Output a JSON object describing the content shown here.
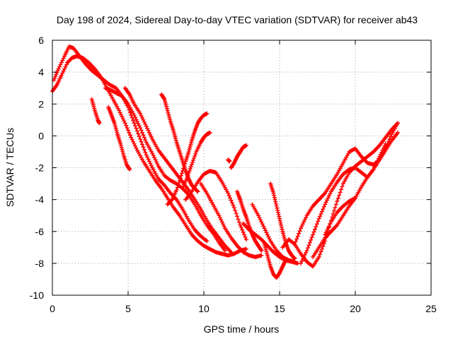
{
  "chart_data": {
    "type": "scatter",
    "title": "Day 198 of 2024, Sidereal Day-to-day VTEC variation (SDTVAR) for receiver ab43",
    "xlabel": "GPS time / hours",
    "ylabel": "SDTVAR / TECUs",
    "xlim": [
      0,
      25
    ],
    "ylim": [
      -10,
      6
    ],
    "xticks": [
      0,
      5,
      10,
      15,
      20,
      25
    ],
    "yticks": [
      -10,
      -8,
      -6,
      -4,
      -2,
      0,
      2,
      4,
      6
    ],
    "grid": true,
    "legend": "none",
    "marker": "+",
    "color": "#ff0000",
    "series": [
      {
        "x": [
          0.0,
          0.3,
          0.6,
          1.0,
          1.3,
          1.6,
          2.0,
          2.4,
          2.8,
          3.2,
          3.6,
          4.0,
          4.4,
          4.8,
          5.2,
          5.6,
          6.0,
          6.4,
          6.8,
          7.2,
          7.6,
          8.0,
          8.4,
          8.8,
          9.2,
          9.6,
          10.0,
          10.4,
          10.8,
          11.2,
          11.6,
          12.0,
          12.4,
          12.8
        ],
        "y": [
          2.8,
          3.2,
          3.8,
          4.6,
          4.9,
          5.0,
          4.9,
          4.6,
          4.2,
          3.7,
          3.0,
          2.3,
          1.6,
          0.8,
          -0.1,
          -0.9,
          -1.6,
          -2.2,
          -2.8,
          -3.3,
          -3.9,
          -4.5,
          -5.0,
          -5.6,
          -6.2,
          -6.6,
          -6.9,
          -7.1,
          -7.3,
          -7.4,
          -7.5,
          -7.4,
          -7.2,
          -7.1
        ]
      },
      {
        "x": [
          0.1,
          0.4,
          0.8,
          1.1,
          1.4,
          1.8,
          2.2,
          2.6,
          3.0,
          3.4,
          3.8,
          4.2,
          4.6,
          5.0,
          5.4,
          5.8,
          6.2,
          6.6,
          7.0,
          7.4,
          7.8,
          8.2,
          8.6,
          9.0,
          9.4,
          9.8,
          10.2
        ],
        "y": [
          3.5,
          4.2,
          5.0,
          5.6,
          5.5,
          5.0,
          4.5,
          4.1,
          3.8,
          3.5,
          3.2,
          3.0,
          2.5,
          1.8,
          0.8,
          -0.2,
          -1.2,
          -2.0,
          -2.7,
          -3.1,
          -3.6,
          -4.0,
          -4.6,
          -5.3,
          -5.9,
          -6.3,
          -6.6
        ]
      },
      {
        "x": [
          3.5,
          3.8,
          4.2,
          4.6,
          5.0,
          5.4,
          5.8,
          6.2,
          6.6,
          7.0,
          7.4,
          7.8,
          8.2,
          8.6,
          9.0,
          9.4,
          9.8,
          10.2,
          10.6,
          11.0,
          11.4
        ],
        "y": [
          3.0,
          2.9,
          2.7,
          2.5,
          2.0,
          1.3,
          0.5,
          -0.4,
          -1.1,
          -1.9,
          -2.5,
          -2.8,
          -3.0,
          -3.3,
          -3.7,
          -4.3,
          -5.0,
          -5.6,
          -6.1,
          -6.7,
          -7.2
        ]
      },
      {
        "x": [
          4.8,
          5.1,
          5.4,
          5.8,
          6.2,
          6.6,
          7.0,
          7.4,
          7.8,
          8.2,
          8.6,
          9.0,
          9.4,
          9.8,
          10.2,
          10.6,
          11.0,
          11.4,
          11.8
        ],
        "y": [
          3.0,
          2.6,
          2.0,
          1.4,
          0.6,
          -0.2,
          -0.9,
          -1.4,
          -1.9,
          -2.4,
          -2.9,
          -3.4,
          -4.0,
          -4.6,
          -5.3,
          -5.9,
          -6.4,
          -6.9,
          -7.3
        ]
      },
      {
        "x": [
          2.6,
          2.8,
          3.0,
          3.1
        ],
        "y": [
          2.3,
          1.6,
          1.0,
          0.8
        ]
      },
      {
        "x": [
          3.7,
          3.9,
          4.1,
          4.3,
          4.5,
          4.7,
          4.9,
          5.1
        ],
        "y": [
          1.8,
          1.3,
          0.8,
          0.1,
          -0.5,
          -1.2,
          -1.8,
          -2.1
        ]
      },
      {
        "x": [
          7.2,
          7.4,
          7.6,
          7.8,
          8.0,
          8.2,
          8.4,
          8.6,
          8.8,
          9.0,
          9.2,
          9.4,
          9.6
        ],
        "y": [
          2.6,
          2.3,
          1.6,
          0.9,
          0.3,
          -0.4,
          -1.0,
          -1.6,
          -2.2,
          -2.7,
          -3.1,
          -3.3,
          -3.5
        ]
      },
      {
        "x": [
          7.6,
          7.9,
          8.2,
          8.5,
          8.8,
          9.0,
          9.2,
          9.4,
          9.6,
          9.8,
          10.0,
          10.2
        ],
        "y": [
          -4.3,
          -4.0,
          -3.4,
          -2.5,
          -1.6,
          -1.0,
          -0.3,
          0.3,
          0.8,
          1.1,
          1.3,
          1.4
        ]
      },
      {
        "x": [
          8.6,
          8.9,
          9.2,
          9.5,
          9.8,
          10.0,
          10.2,
          10.4
        ],
        "y": [
          -3.3,
          -2.6,
          -1.8,
          -1.0,
          -0.4,
          -0.1,
          0.1,
          0.2
        ]
      },
      {
        "x": [
          8.8,
          9.2,
          9.6,
          10.0,
          10.4,
          10.8,
          11.2,
          11.6,
          12.0,
          12.4,
          12.8
        ],
        "y": [
          -4.0,
          -3.5,
          -2.9,
          -2.4,
          -2.2,
          -2.3,
          -2.9,
          -3.6,
          -4.5,
          -5.6,
          -6.5
        ]
      },
      {
        "x": [
          9.8,
          10.2,
          10.6,
          11.0,
          11.4,
          11.8,
          12.2,
          12.6,
          13.0,
          13.4,
          13.8
        ],
        "y": [
          -3.0,
          -3.6,
          -4.3,
          -5.0,
          -5.8,
          -6.4,
          -6.9,
          -7.3,
          -7.5,
          -7.6,
          -7.5
        ]
      },
      {
        "x": [
          11.6,
          11.7
        ],
        "y": [
          -1.5,
          -1.6
        ]
      },
      {
        "x": [
          11.8,
          12.0,
          12.2,
          12.4,
          12.6,
          12.8
        ],
        "y": [
          -2.0,
          -1.7,
          -1.3,
          -1.0,
          -0.7,
          -0.6
        ]
      },
      {
        "x": [
          12.2,
          12.4,
          12.6,
          12.8,
          13.0,
          13.2,
          13.4,
          13.6,
          13.8
        ],
        "y": [
          -3.5,
          -4.0,
          -4.6,
          -5.1,
          -5.7,
          -6.2,
          -6.6,
          -6.9,
          -7.2
        ]
      },
      {
        "x": [
          12.6,
          13.0,
          13.4,
          13.8,
          14.2,
          14.6,
          15.0,
          15.4,
          15.8,
          16.2
        ],
        "y": [
          -5.5,
          -5.9,
          -6.2,
          -6.5,
          -6.9,
          -7.3,
          -7.6,
          -7.8,
          -7.9,
          -8.0
        ]
      },
      {
        "x": [
          13.2,
          13.6,
          14.0,
          14.4,
          14.8,
          15.2,
          15.6,
          16.0
        ],
        "y": [
          -4.3,
          -5.0,
          -5.8,
          -6.6,
          -7.2,
          -7.6,
          -7.8,
          -7.9
        ]
      },
      {
        "x": [
          14.0,
          14.2,
          14.4,
          14.6,
          14.8,
          15.0,
          15.2,
          15.4
        ],
        "y": [
          -6.8,
          -7.5,
          -8.2,
          -8.7,
          -8.9,
          -8.6,
          -8.2,
          -7.8
        ]
      },
      {
        "x": [
          14.4,
          14.6,
          14.8,
          15.0,
          15.2,
          15.4,
          15.6,
          15.8,
          16.0
        ],
        "y": [
          -3.0,
          -3.6,
          -4.4,
          -5.2,
          -6.0,
          -6.7,
          -7.2,
          -7.5,
          -7.7
        ]
      },
      {
        "x": [
          15.2,
          15.6,
          16.0,
          16.4,
          16.8,
          17.2,
          17.6,
          18.0,
          18.4,
          18.8,
          19.2,
          19.6,
          20.0,
          20.4,
          20.8,
          21.2,
          21.6,
          22.0,
          22.4,
          22.8
        ],
        "y": [
          -7.0,
          -6.5,
          -6.8,
          -7.4,
          -7.9,
          -8.2,
          -7.6,
          -6.6,
          -5.3,
          -4.1,
          -3.0,
          -2.3,
          -1.9,
          -1.6,
          -1.3,
          -1.0,
          -0.6,
          -0.1,
          0.4,
          0.8
        ]
      },
      {
        "x": [
          16.0,
          16.4,
          16.8,
          17.2,
          17.6,
          18.0,
          18.4,
          18.8,
          19.2,
          19.6,
          20.0,
          20.4,
          20.8,
          21.2,
          21.6,
          22.0,
          22.4,
          22.8
        ],
        "y": [
          -6.8,
          -5.8,
          -5.0,
          -4.4,
          -4.0,
          -3.6,
          -3.0,
          -2.4,
          -1.7,
          -1.0,
          -0.8,
          -1.3,
          -1.7,
          -1.8,
          -1.5,
          -0.8,
          0.1,
          0.8
        ]
      },
      {
        "x": [
          16.4,
          16.8,
          17.2,
          17.6,
          18.0,
          18.4,
          18.8,
          19.2,
          19.6,
          20.0,
          20.4,
          20.8,
          21.2,
          21.6,
          22.0
        ],
        "y": [
          -8.0,
          -7.2,
          -6.2,
          -5.2,
          -4.3,
          -3.5,
          -2.9,
          -2.4,
          -2.1,
          -2.0,
          -2.3,
          -2.6,
          -2.1,
          -1.3,
          -0.5
        ]
      },
      {
        "x": [
          17.2,
          17.6,
          18.0,
          18.4,
          18.8,
          19.2,
          19.6,
          20.0,
          20.4,
          20.8,
          21.2,
          21.6,
          22.0,
          22.4,
          22.8
        ],
        "y": [
          -7.6,
          -7.0,
          -6.4,
          -6.0,
          -5.6,
          -5.0,
          -4.4,
          -3.9,
          -3.2,
          -2.6,
          -2.1,
          -1.5,
          -0.9,
          -0.3,
          0.2
        ]
      },
      {
        "x": [
          18.0,
          18.4,
          18.8,
          19.2,
          19.6,
          20.0
        ],
        "y": [
          -6.2,
          -5.4,
          -4.8,
          -4.4,
          -4.1,
          -3.9
        ]
      }
    ]
  }
}
